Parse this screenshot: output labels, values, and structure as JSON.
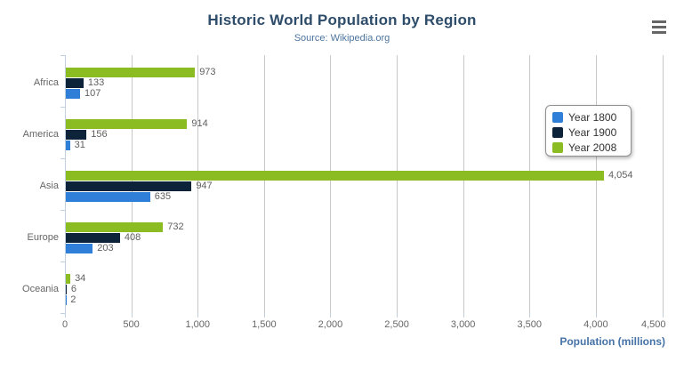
{
  "chart_data": {
    "type": "bar",
    "title": "Historic World Population by Region",
    "subtitle": "Source: Wikipedia.org",
    "categories": [
      "Africa",
      "America",
      "Asia",
      "Europe",
      "Oceania"
    ],
    "series": [
      {
        "name": "Year 1800",
        "color": "#2f7ed8",
        "values": [
          107,
          31,
          635,
          203,
          2
        ],
        "labels": [
          "107",
          "31",
          "635",
          "203",
          "2"
        ]
      },
      {
        "name": "Year 1900",
        "color": "#0d233a",
        "values": [
          133,
          156,
          947,
          408,
          6
        ],
        "labels": [
          "133",
          "156",
          "947",
          "408",
          "6"
        ]
      },
      {
        "name": "Year 2008",
        "color": "#8bbc21",
        "values": [
          973,
          914,
          4054,
          732,
          34
        ],
        "labels": [
          "973",
          "914",
          "4,054",
          "732",
          "34"
        ]
      }
    ],
    "series_display_order_top_to_bottom": [
      "Year 2008",
      "Year 1900",
      "Year 1800"
    ],
    "xlabel": "Population (millions)",
    "ylabel": "",
    "xlim": [
      0,
      4500
    ],
    "xticks": [
      0,
      500,
      1000,
      1500,
      2000,
      2500,
      3000,
      3500,
      4000,
      4500
    ],
    "xtick_labels": [
      "0",
      "500",
      "1,000",
      "1,500",
      "2,000",
      "2,500",
      "3,000",
      "3,500",
      "4,000",
      "4,500"
    ],
    "grid": true,
    "legend_position": "right-inside-floating"
  },
  "icons": {
    "context_menu": "hamburger-icon"
  },
  "colors": {
    "title": "#2e4d6b",
    "subtitle": "#4d759e",
    "axis_title": "#4572a7",
    "axis_labels": "#666666",
    "data_labels": "#606060",
    "gridline": "#c8c8c8",
    "axis_line": "#c0d0e0",
    "legend_border": "#909090",
    "legend_text": "#333333",
    "menu_icon": "#666666",
    "background": "#ffffff"
  }
}
